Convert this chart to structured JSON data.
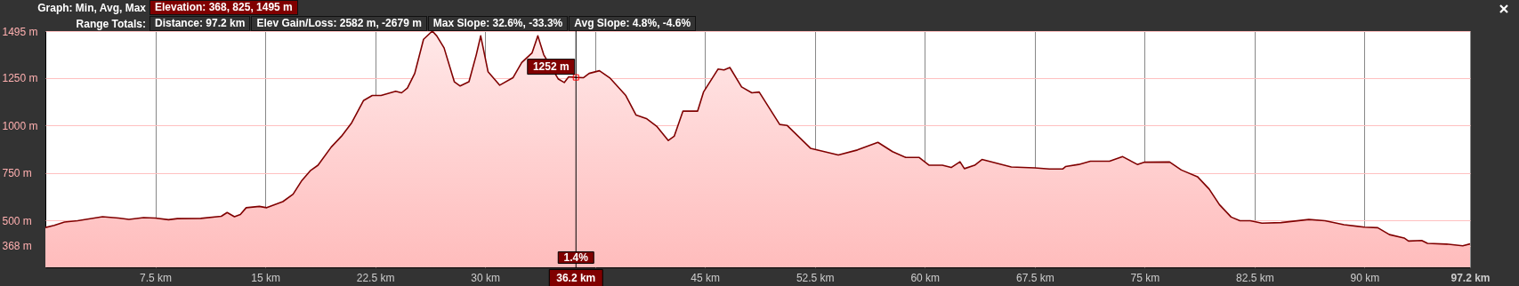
{
  "chart_data": {
    "type": "area",
    "x": [
      0,
      0.6,
      1.3,
      2.2,
      3.9,
      5.0,
      5.7,
      6.7,
      7.5,
      8.4,
      9.0,
      10.6,
      12.0,
      12.4,
      12.9,
      13.3,
      13.7,
      14.6,
      15.1,
      16.2,
      16.9,
      17.5,
      18.1,
      18.6,
      19.5,
      20.2,
      20.9,
      21.7,
      22.3,
      22.9,
      23.9,
      24.3,
      24.7,
      25.2,
      25.8,
      26.4,
      26.7,
      27.2,
      27.9,
      28.3,
      28.9,
      29.4,
      29.7,
      30.2,
      31.0,
      31.9,
      32.5,
      33.2,
      33.6,
      34.0,
      35.0,
      35.4,
      35.7,
      36.2,
      36.7,
      37.1,
      37.8,
      38.5,
      39.6,
      40.3,
      41.0,
      41.7,
      42.5,
      42.9,
      43.5,
      44.5,
      44.9,
      45.9,
      46.3,
      46.7,
      47.5,
      48.2,
      48.7,
      50.1,
      50.6,
      52.2,
      54.1,
      55.4,
      56.8,
      57.8,
      58.7,
      59.6,
      60.3,
      61.2,
      61.8,
      62.4,
      62.7,
      63.4,
      63.9,
      65.9,
      67.5,
      68.5,
      69.4,
      69.6,
      70.5,
      71.3,
      72.6,
      73.5,
      74.5,
      75.0,
      76.7,
      77.5,
      78.6,
      79.4,
      80.1,
      80.9,
      81.5,
      82.2,
      83.0,
      84.3,
      86.2,
      87.3,
      88.6,
      90.0,
      90.9,
      91.7,
      92.7,
      93.0,
      93.9,
      94.3,
      95.6,
      96.7,
      97.2
    ],
    "series": [
      {
        "color": "#800000",
        "values": [
          464,
          475,
          493,
          500,
          521,
          514,
          507,
          516,
          514,
          505,
          511,
          512,
          523,
          543,
          521,
          532,
          568,
          575,
          568,
          600,
          639,
          711,
          764,
          791,
          886,
          943,
          1014,
          1130,
          1157,
          1157,
          1179,
          1171,
          1196,
          1273,
          1452,
          1495,
          1470,
          1407,
          1229,
          1207,
          1229,
          1371,
          1470,
          1282,
          1211,
          1250,
          1330,
          1380,
          1470,
          1371,
          1243,
          1225,
          1255,
          1252,
          1250,
          1273,
          1287,
          1250,
          1157,
          1054,
          1036,
          996,
          921,
          943,
          1075,
          1075,
          1175,
          1296,
          1291,
          1304,
          1202,
          1171,
          1175,
          1005,
          1000,
          880,
          845,
          871,
          911,
          862,
          832,
          832,
          791,
          791,
          779,
          809,
          773,
          791,
          821,
          782,
          777,
          771,
          771,
          784,
          795,
          812,
          812,
          836,
          795,
          807,
          808,
          766,
          731,
          666,
          584,
          519,
          500,
          500,
          487,
          490,
          506,
          500,
          479,
          466,
          463,
          427,
          409,
          393,
          396,
          381,
          377,
          368,
          378
        ]
      }
    ],
    "xlim": [
      0,
      97.2
    ],
    "xticks": [
      {
        "value": 7.5,
        "label": "7.5 km"
      },
      {
        "value": 15,
        "label": "15 km"
      },
      {
        "value": 22.5,
        "label": "22.5 km"
      },
      {
        "value": 30,
        "label": "30 km"
      },
      {
        "value": 37.5,
        "label": null
      },
      {
        "value": 45,
        "label": "45 km"
      },
      {
        "value": 52.5,
        "label": "52.5 km"
      },
      {
        "value": 60,
        "label": "60 km"
      },
      {
        "value": 67.5,
        "label": "67.5 km"
      },
      {
        "value": 75,
        "label": "75 km"
      },
      {
        "value": 82.5,
        "label": "82.5 km"
      },
      {
        "value": 90,
        "label": "90 km"
      },
      {
        "value": 97.2,
        "label": "97.2 km"
      }
    ],
    "ylim": [
      255,
      1495
    ],
    "yticks": [
      {
        "value": 368,
        "label": "368 m"
      },
      {
        "value": 500,
        "label": "500 m"
      },
      {
        "value": 750,
        "label": "750 m"
      },
      {
        "value": 1000,
        "label": "1000 m"
      },
      {
        "value": 1250,
        "label": "1250 m"
      },
      {
        "value": 1495,
        "label": "1495 m"
      }
    ],
    "grid": true,
    "ref_lines": [
      {
        "axis": "x",
        "value": 36.2,
        "label": "36.2 km",
        "color": "#000000"
      }
    ],
    "annotations": [
      "Graph: Min, Avg, Max",
      "Elevation: 368, 825, 1495 m",
      "Range Totals:",
      "Distance: 97.2 km",
      "Elev Gain/Loss: 2582 m, -2679 m",
      "Max Slope: 32.6%, -33.3%",
      "Avg Slope: 4.8%, -4.6%",
      {
        "text": "1252 m",
        "x": 36.2,
        "y": 1252
      },
      {
        "text": "1.4%",
        "x": 36.2
      }
    ]
  }
}
